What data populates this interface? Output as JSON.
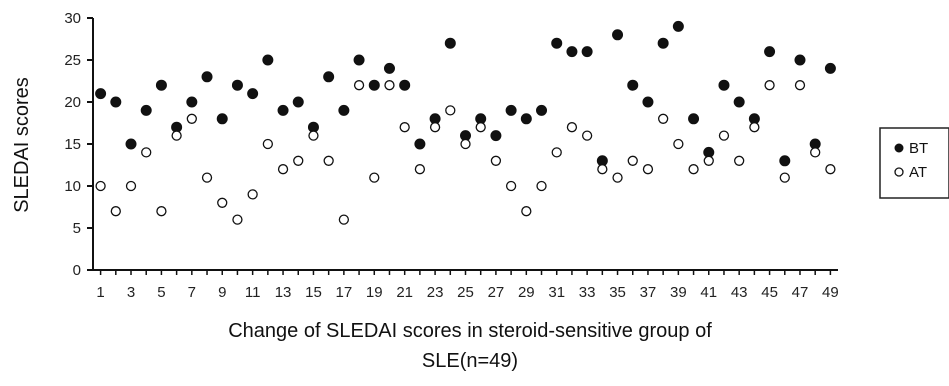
{
  "chart_data": {
    "type": "scatter",
    "title": "",
    "xlabel": [
      "Change of SLEDAI scores in steroid-sensitive group of",
      "SLE(n=49)"
    ],
    "ylabel": "SLEDAI scores",
    "x": [
      1,
      2,
      3,
      4,
      5,
      6,
      7,
      8,
      9,
      10,
      11,
      12,
      13,
      14,
      15,
      16,
      17,
      18,
      19,
      20,
      21,
      22,
      23,
      24,
      25,
      26,
      27,
      28,
      29,
      30,
      31,
      32,
      33,
      34,
      35,
      36,
      37,
      38,
      39,
      40,
      41,
      42,
      43,
      44,
      45,
      46,
      47,
      48,
      49
    ],
    "x_tick_labels": [
      "1",
      "3",
      "5",
      "7",
      "9",
      "11",
      "13",
      "15",
      "17",
      "19",
      "21",
      "23",
      "25",
      "27",
      "29",
      "31",
      "33",
      "35",
      "37",
      "39",
      "41",
      "43",
      "45",
      "47",
      "49"
    ],
    "xlim": [
      0.5,
      49.5
    ],
    "ylim": [
      0,
      30
    ],
    "y_ticks": [
      0,
      5,
      10,
      15,
      20,
      25,
      30
    ],
    "grid": false,
    "legend_position": "right",
    "series": [
      {
        "name": "BT",
        "marker": "filled-circle",
        "color": "#111111",
        "values": [
          21,
          20,
          15,
          19,
          22,
          17,
          20,
          23,
          18,
          22,
          21,
          25,
          19,
          20,
          17,
          23,
          19,
          25,
          22,
          24,
          22,
          15,
          18,
          27,
          16,
          18,
          16,
          19,
          18,
          19,
          27,
          26,
          26,
          13,
          28,
          22,
          20,
          27,
          29,
          18,
          14,
          22,
          20,
          18,
          26,
          13,
          25,
          15,
          24
        ]
      },
      {
        "name": "AT",
        "marker": "open-circle",
        "color": "#111111",
        "values": [
          10,
          7,
          10,
          14,
          7,
          16,
          18,
          11,
          8,
          6,
          9,
          15,
          12,
          13,
          16,
          13,
          6,
          22,
          11,
          22,
          17,
          12,
          17,
          19,
          15,
          17,
          13,
          10,
          7,
          10,
          14,
          17,
          16,
          12,
          11,
          13,
          12,
          18,
          15,
          12,
          13,
          16,
          13,
          17,
          22,
          11,
          22,
          14,
          12
        ]
      }
    ]
  }
}
